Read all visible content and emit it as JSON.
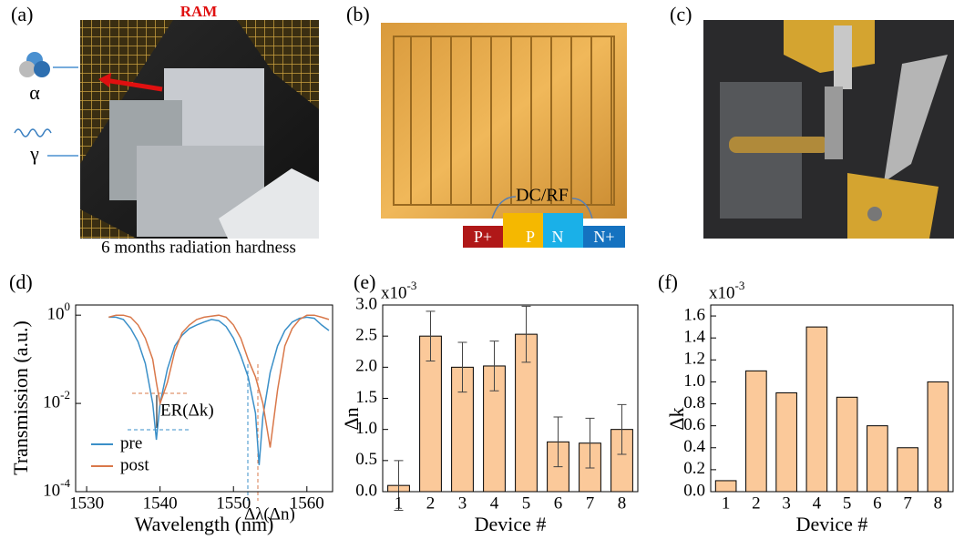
{
  "panels": {
    "a": {
      "label": "(a)",
      "title": "RAM",
      "particles": [
        "α",
        "γ"
      ],
      "caption": "6 months radiation hardness"
    },
    "b": {
      "label": "(b)",
      "annotation": "DC/RF",
      "regions": [
        "P+",
        "P",
        "N",
        "N+"
      ]
    },
    "c": {
      "label": "(c)"
    }
  },
  "chart_data": [
    {
      "type": "line",
      "panel_label": "(d)",
      "x_label": "Wavelength (nm)",
      "y_label": "Transmission (a.u.)",
      "log_y": true,
      "x": [
        1533,
        1534,
        1535,
        1536,
        1537,
        1538,
        1539,
        1539.5,
        1540,
        1541,
        1542,
        1543,
        1544,
        1545,
        1546,
        1547,
        1548,
        1549,
        1550,
        1551,
        1552,
        1553,
        1553.5,
        1554,
        1555,
        1556,
        1557,
        1558,
        1559,
        1560,
        1561,
        1562,
        1563
      ],
      "series": [
        {
          "name": "pre",
          "color": "#3a8fc8",
          "values": [
            0.9,
            0.9,
            0.8,
            0.5,
            0.25,
            0.08,
            0.01,
            0.0015,
            0.01,
            0.06,
            0.2,
            0.35,
            0.5,
            0.6,
            0.7,
            0.8,
            0.75,
            0.55,
            0.3,
            0.12,
            0.04,
            0.006,
            0.0004,
            0.005,
            0.05,
            0.2,
            0.45,
            0.7,
            0.85,
            0.9,
            0.85,
            0.6,
            0.45
          ]
        },
        {
          "name": "post",
          "color": "#d9784a",
          "values": [
            0.9,
            1,
            1,
            0.9,
            0.6,
            0.3,
            0.1,
            0.03,
            0.01,
            0.03,
            0.15,
            0.4,
            0.6,
            0.8,
            0.9,
            0.95,
            1,
            0.9,
            0.6,
            0.3,
            0.1,
            0.04,
            0.02,
            0.01,
            0.001,
            0.02,
            0.2,
            0.5,
            0.8,
            1,
            1,
            0.9,
            0.8
          ]
        }
      ],
      "xlim": [
        1528.5,
        1563.5
      ],
      "xticks": [
        1530,
        1540,
        1550,
        1560
      ],
      "ylim": [
        0.0001,
        1.7
      ],
      "yticks": [
        {
          "value": 1,
          "label": "10",
          "exponent": "0"
        },
        {
          "value": 0.01,
          "label": "10",
          "exponent": "-2"
        },
        {
          "value": 0.0001,
          "label": "10",
          "exponent": "-4"
        }
      ],
      "annotations": [
        "ER(Δk)",
        "Δλ(Δn)"
      ]
    },
    {
      "type": "bar",
      "panel_label": "(e)",
      "x_label": "Device #",
      "y_label": "Δn",
      "multiplier": {
        "text": "x10",
        "exponent": "-3"
      },
      "categories": [
        "1",
        "2",
        "3",
        "4",
        "5",
        "6",
        "7",
        "8"
      ],
      "values": [
        0.1,
        2.5,
        2.0,
        2.02,
        2.53,
        0.8,
        0.78,
        1.0
      ],
      "errors": [
        0.4,
        0.4,
        0.4,
        0.4,
        0.45,
        0.4,
        0.4,
        0.4
      ],
      "color": "#fbc99a",
      "ylim": [
        0,
        3
      ],
      "yticks": [
        {
          "value": 0,
          "label": "0.0"
        },
        0.5,
        {
          "value": 1,
          "label": "1.0"
        },
        1.5,
        {
          "value": 2,
          "label": "2.0"
        },
        2.5,
        {
          "value": 3,
          "label": "3.0"
        }
      ]
    },
    {
      "type": "bar",
      "panel_label": "(f)",
      "x_label": "Device #",
      "y_label": "Δk",
      "multiplier": {
        "text": "x10",
        "exponent": "-3"
      },
      "categories": [
        "1",
        "2",
        "3",
        "4",
        "5",
        "6",
        "7",
        "8"
      ],
      "values": [
        0.1,
        1.1,
        0.9,
        1.5,
        0.86,
        0.6,
        0.4,
        1.0
      ],
      "color": "#fbc99a",
      "ylim": [
        0,
        1.7
      ],
      "yticks": [
        {
          "value": 0,
          "label": "0.0"
        },
        0.2,
        0.4,
        0.6,
        0.8,
        {
          "value": 1,
          "label": "1.0"
        },
        1.2,
        1.4,
        1.6
      ]
    }
  ]
}
